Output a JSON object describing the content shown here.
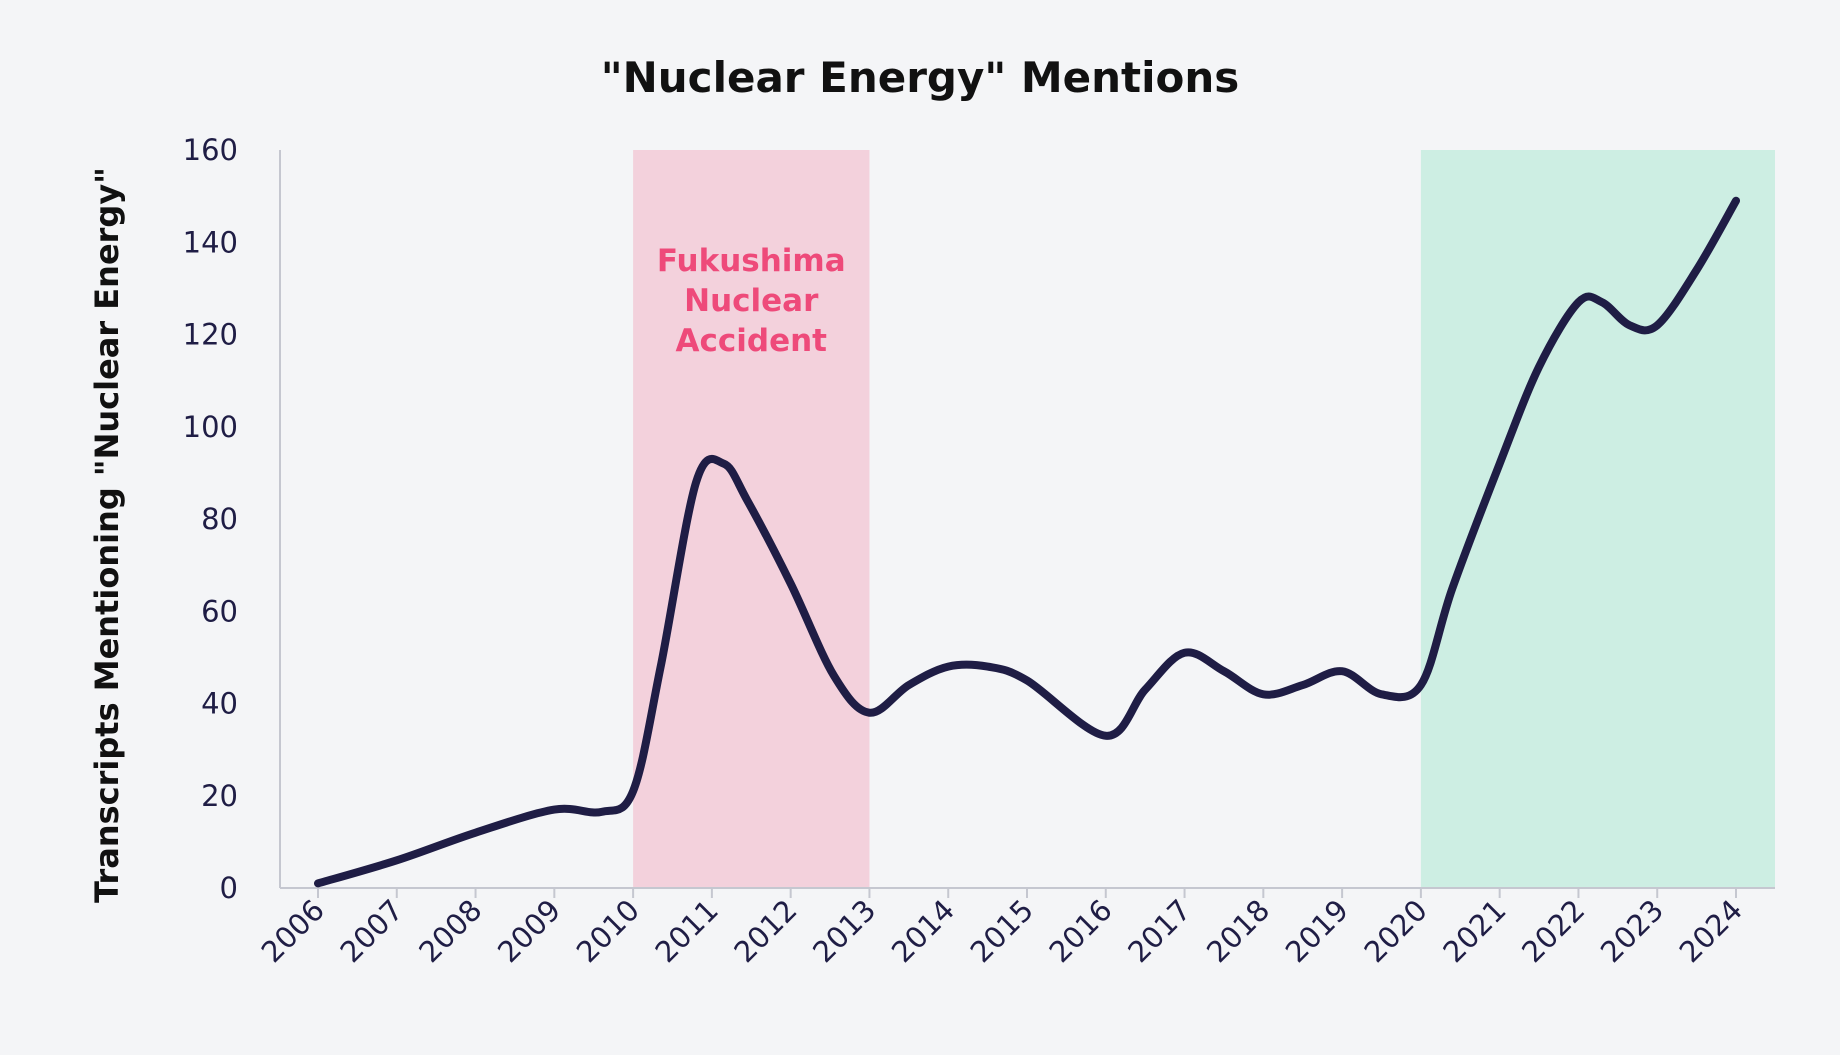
{
  "chart_data": {
    "type": "line",
    "title": "\"Nuclear Energy\" Mentions",
    "xlabel": "",
    "ylabel": "Transcripts Mentioning \"Nuclear Energy\"",
    "x": [
      2006,
      2007,
      2008,
      2009,
      2010,
      2011,
      2012,
      2013,
      2014,
      2015,
      2016,
      2017,
      2018,
      2019,
      2020,
      2021,
      2022,
      2023,
      2024
    ],
    "x_tick_labels": [
      "2006",
      "2007",
      "2008",
      "2009",
      "2010",
      "2011",
      "2012",
      "2013",
      "2014",
      "2015",
      "2016",
      "2017",
      "2018",
      "2019",
      "2020",
      "2021",
      "2022",
      "2023",
      "2024"
    ],
    "ylim": [
      0,
      160
    ],
    "y_ticks": [
      0,
      20,
      40,
      60,
      80,
      100,
      120,
      140,
      160
    ],
    "grid": false,
    "series": [
      {
        "color": "#1f1d45",
        "points": [
          [
            2006,
            1
          ],
          [
            2007,
            6
          ],
          [
            2008,
            12
          ],
          [
            2009,
            17
          ],
          [
            2009.6,
            16.5
          ],
          [
            2010,
            21
          ],
          [
            2010.35,
            48
          ],
          [
            2010.8,
            88
          ],
          [
            2011.15,
            92
          ],
          [
            2011.45,
            84
          ],
          [
            2012,
            66
          ],
          [
            2012.55,
            46
          ],
          [
            2013,
            38
          ],
          [
            2013.5,
            44
          ],
          [
            2014,
            48
          ],
          [
            2014.5,
            48
          ],
          [
            2015,
            45
          ],
          [
            2016,
            33
          ],
          [
            2016.5,
            43
          ],
          [
            2017,
            51
          ],
          [
            2017.5,
            47
          ],
          [
            2018,
            42
          ],
          [
            2018.5,
            44
          ],
          [
            2019,
            47
          ],
          [
            2019.5,
            42
          ],
          [
            2020,
            44
          ],
          [
            2020.4,
            65
          ],
          [
            2021,
            92
          ],
          [
            2021.5,
            113
          ],
          [
            2022,
            127
          ],
          [
            2022.3,
            127
          ],
          [
            2022.65,
            122
          ],
          [
            2023,
            122
          ],
          [
            2023.5,
            134
          ],
          [
            2024,
            149
          ]
        ]
      }
    ],
    "shaded_regions": [
      {
        "x0": 2010,
        "x1": 2013,
        "color": "#f3d1dc",
        "label_lines": [
          "Fukushima",
          "Nuclear",
          "Accident"
        ],
        "label_color": "#ee4a7a"
      },
      {
        "x0": 2020,
        "x1": 2024.5,
        "color": "#cdeee3",
        "label_lines": [],
        "label_color": ""
      }
    ],
    "line_color": "#1f1d45",
    "axis_color": "#c5c7d0"
  }
}
